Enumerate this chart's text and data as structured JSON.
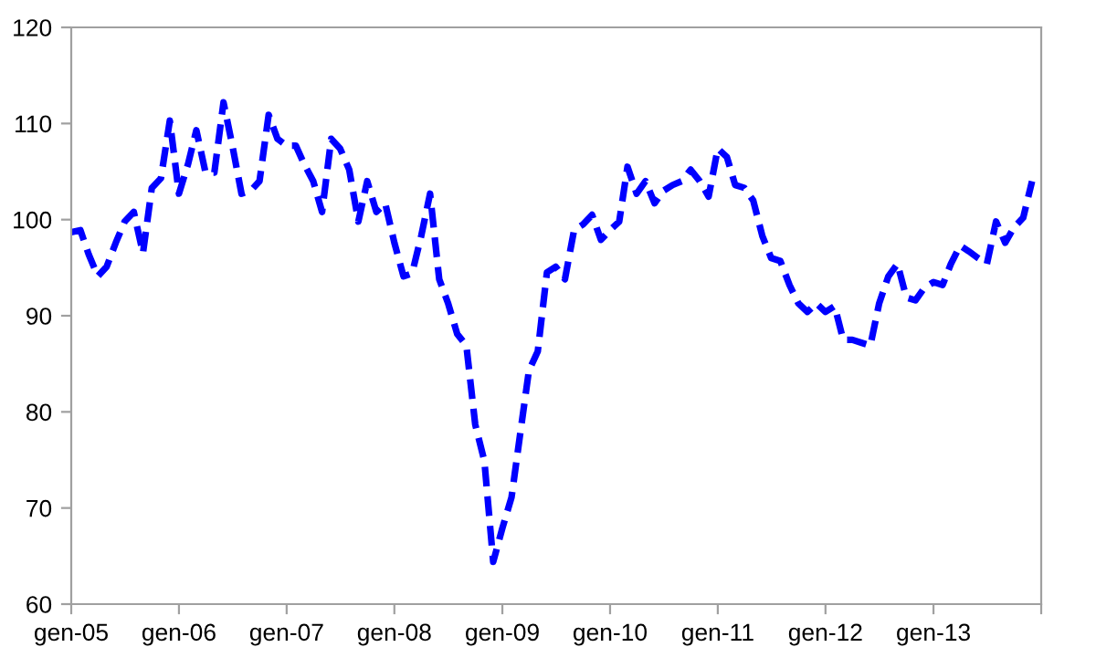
{
  "chart_data": {
    "type": "line",
    "x": [
      "2005-01",
      "2005-02",
      "2005-03",
      "2005-04",
      "2005-05",
      "2005-06",
      "2005-07",
      "2005-08",
      "2005-09",
      "2005-10",
      "2005-11",
      "2005-12",
      "2006-01",
      "2006-02",
      "2006-03",
      "2006-04",
      "2006-05",
      "2006-06",
      "2006-07",
      "2006-08",
      "2006-09",
      "2006-10",
      "2006-11",
      "2006-12",
      "2007-01",
      "2007-02",
      "2007-03",
      "2007-04",
      "2007-05",
      "2007-06",
      "2007-07",
      "2007-08",
      "2007-09",
      "2007-10",
      "2007-11",
      "2007-12",
      "2008-01",
      "2008-02",
      "2008-03",
      "2008-04",
      "2008-05",
      "2008-06",
      "2008-07",
      "2008-08",
      "2008-09",
      "2008-10",
      "2008-11",
      "2008-12",
      "2009-01",
      "2009-02",
      "2009-03",
      "2009-04",
      "2009-05",
      "2009-06",
      "2009-07",
      "2009-08",
      "2009-09",
      "2009-10",
      "2009-11",
      "2009-12",
      "2010-01",
      "2010-02",
      "2010-03",
      "2010-04",
      "2010-05",
      "2010-06",
      "2010-07",
      "2010-08",
      "2010-09",
      "2010-10",
      "2010-11",
      "2010-12",
      "2011-01",
      "2011-02",
      "2011-03",
      "2011-04",
      "2011-05",
      "2011-06",
      "2011-07",
      "2011-08",
      "2011-09",
      "2011-10",
      "2011-11",
      "2011-12",
      "2012-01",
      "2012-02",
      "2012-03",
      "2012-04",
      "2012-05",
      "2012-06",
      "2012-07",
      "2012-08",
      "2012-09",
      "2012-10",
      "2012-11",
      "2012-12",
      "2013-01",
      "2013-02",
      "2013-03",
      "2013-04",
      "2013-05",
      "2013-06",
      "2013-07",
      "2013-08",
      "2013-09",
      "2013-10",
      "2013-11",
      "2013-12"
    ],
    "series": [
      {
        "color": "#0000ff",
        "values": [
          98.7,
          98.9,
          96.4,
          94.1,
          95.1,
          97.6,
          99.8,
          100.8,
          96.5,
          103.3,
          104.3,
          110.3,
          102.7,
          105.8,
          109.3,
          104.9,
          104.9,
          112.2,
          107.7,
          102.7,
          103,
          104,
          110.9,
          108.4,
          107.7,
          107.7,
          105.8,
          104,
          100.8,
          108.4,
          107.4,
          105.2,
          99.8,
          104,
          100.8,
          101.7,
          97.6,
          94.1,
          94.4,
          98.3,
          102.7,
          93.8,
          91.3,
          88.1,
          86.9,
          78.7,
          74.9,
          64.4,
          67.9,
          71.1,
          77.4,
          84.3,
          86.3,
          94.5,
          95.1,
          93.8,
          98.9,
          99.5,
          100.5,
          97.9,
          98.9,
          99.8,
          105.5,
          102.7,
          104,
          101.7,
          103,
          103.6,
          104,
          105.2,
          104,
          102.4,
          107.4,
          106.5,
          103.6,
          103.3,
          102,
          98.3,
          96,
          95.7,
          93.2,
          91.3,
          90.4,
          91.3,
          90.4,
          91,
          87.5,
          87.5,
          87.2,
          86.9,
          91.3,
          94.1,
          95.4,
          91.9,
          91.6,
          92.9,
          93.5,
          93.2,
          95.4,
          97.3,
          96.7,
          96,
          95.4,
          99.8,
          97.6,
          99.2,
          100.2,
          104
        ]
      }
    ],
    "xlim": [
      "2005-01",
      "2014-01"
    ],
    "xticks": [
      {
        "value": "2005-01",
        "label": "gen-05"
      },
      {
        "value": "2006-01",
        "label": "gen-06"
      },
      {
        "value": "2007-01",
        "label": "gen-07"
      },
      {
        "value": "2008-01",
        "label": "gen-08"
      },
      {
        "value": "2009-01",
        "label": "gen-09"
      },
      {
        "value": "2010-01",
        "label": "gen-10"
      },
      {
        "value": "2011-01",
        "label": "gen-11"
      },
      {
        "value": "2012-01",
        "label": "gen-12"
      },
      {
        "value": "2013-01",
        "label": "gen-13"
      },
      {
        "value": "2014-01",
        "label": null
      }
    ],
    "ylim": [
      60,
      120
    ],
    "yticks": [
      60,
      70,
      80,
      90,
      100,
      110,
      120
    ],
    "line_style": "dashed",
    "marker": "none",
    "grid": false,
    "legend": false
  }
}
